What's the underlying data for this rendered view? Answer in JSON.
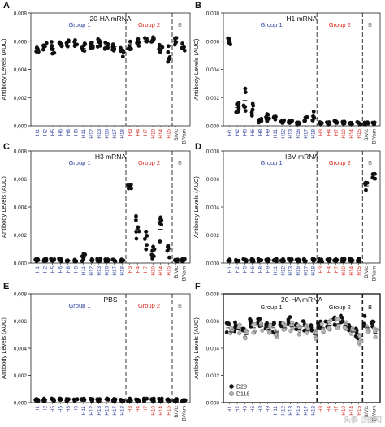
{
  "figure": {
    "ylabel": "Antibody Levels (AUC)",
    "watermark": "头条 @图知"
  },
  "chart_data": [
    {
      "type": "scatter",
      "panel_letter": "A",
      "title": "20-HA mRNA",
      "ylabel": "Antibody Levels (AUC)",
      "ylim": [
        0,
        0.008
      ],
      "yticks": [
        "0,000",
        "0,002",
        "0,004",
        "0,006",
        "0,008"
      ],
      "categories": [
        "H1",
        "H2",
        "H5",
        "H6",
        "H8",
        "H9",
        "H11",
        "H12",
        "H13",
        "H16",
        "H17",
        "H18",
        "H3",
        "H4",
        "H7",
        "H10",
        "H14",
        "H15",
        "B/Vic",
        "B/Yam"
      ],
      "category_colors": [
        "#2a3f9d",
        "#2a3f9d",
        "#2a3f9d",
        "#2a3f9d",
        "#2a3f9d",
        "#2a3f9d",
        "#2a3f9d",
        "#2a3f9d",
        "#2a3f9d",
        "#2a3f9d",
        "#2a3f9d",
        "#2a3f9d",
        "#d7281e",
        "#d7281e",
        "#d7281e",
        "#d7281e",
        "#d7281e",
        "#d7281e",
        "#333333",
        "#333333"
      ],
      "groups": [
        {
          "label": "Group 1",
          "color": "#2a3f9d",
          "start": 0,
          "end": 11
        },
        {
          "label": "Group 2",
          "color": "#d7281e",
          "start": 12,
          "end": 17
        },
        {
          "label": "B",
          "color": "#777777",
          "start": 18,
          "end": 19
        }
      ],
      "means": [
        0.0055,
        0.0056,
        0.0055,
        0.0059,
        0.0059,
        0.0058,
        0.0055,
        0.0058,
        0.0059,
        0.0057,
        0.0056,
        0.0054,
        0.0058,
        0.0059,
        0.006,
        0.006,
        0.0056,
        0.0051,
        0.006,
        0.0056
      ],
      "spread": [
        0.0003,
        0.0003,
        0.0005,
        0.0003,
        0.0003,
        0.0003,
        0.0004,
        0.0003,
        0.0003,
        0.0003,
        0.0003,
        0.0005,
        0.0004,
        0.0003,
        0.0003,
        0.0003,
        0.0004,
        0.0006,
        0.0003,
        0.0003
      ]
    },
    {
      "type": "scatter",
      "panel_letter": "B",
      "title": "H1 mRNA",
      "ylabel": "Antibody Levels (AUC)",
      "ylim": [
        0,
        0.008
      ],
      "yticks": [
        "0,000",
        "0,002",
        "0,004",
        "0,006",
        "0,008"
      ],
      "categories": [
        "H1",
        "H2",
        "H5",
        "H6",
        "H8",
        "H9",
        "H11",
        "H12",
        "H13",
        "H16",
        "H17",
        "H18",
        "H3",
        "H4",
        "H7",
        "H10",
        "H14",
        "H15",
        "B/Vic",
        "B/Yam"
      ],
      "category_colors": [
        "#2a3f9d",
        "#2a3f9d",
        "#2a3f9d",
        "#2a3f9d",
        "#2a3f9d",
        "#2a3f9d",
        "#2a3f9d",
        "#2a3f9d",
        "#2a3f9d",
        "#2a3f9d",
        "#2a3f9d",
        "#2a3f9d",
        "#d7281e",
        "#d7281e",
        "#d7281e",
        "#d7281e",
        "#d7281e",
        "#d7281e",
        "#333333",
        "#333333"
      ],
      "groups": [
        {
          "label": "Group 1",
          "color": "#2a3f9d",
          "start": 0,
          "end": 11
        },
        {
          "label": "Group 2",
          "color": "#d7281e",
          "start": 12,
          "end": 17
        },
        {
          "label": "B",
          "color": "#777777",
          "start": 18,
          "end": 19
        }
      ],
      "means": [
        0.006,
        0.0013,
        0.0018,
        0.0011,
        0.0004,
        0.0006,
        0.0006,
        0.0003,
        0.0003,
        0.0002,
        0.0006,
        0.0007,
        0.0002,
        0.0002,
        0.0003,
        0.0002,
        0.0002,
        0.0002,
        0.0002,
        0.0002
      ],
      "spread": [
        0.0003,
        0.0004,
        0.001,
        0.0005,
        0.0002,
        0.0003,
        0.0003,
        0.0001,
        0.0001,
        0.0001,
        0.0003,
        0.0004,
        0.0001,
        0.0001,
        0.0001,
        0.0001,
        0.0001,
        0.0001,
        0.0001,
        0.0001
      ]
    },
    {
      "type": "scatter",
      "panel_letter": "C",
      "title": "H3 mRNA",
      "ylabel": "Antibody Levels (AUC)",
      "ylim": [
        0,
        0.008
      ],
      "yticks": [
        "0,000",
        "0,002",
        "0,004",
        "0,006",
        "0,008"
      ],
      "categories": [
        "H1",
        "H2",
        "H5",
        "H6",
        "H8",
        "H9",
        "H11",
        "H12",
        "H13",
        "H16",
        "H17",
        "H18",
        "H3",
        "H4",
        "H7",
        "H10",
        "H14",
        "H15",
        "B/Vic",
        "B/Yam"
      ],
      "category_colors": [
        "#2a3f9d",
        "#2a3f9d",
        "#2a3f9d",
        "#2a3f9d",
        "#2a3f9d",
        "#2a3f9d",
        "#2a3f9d",
        "#2a3f9d",
        "#2a3f9d",
        "#2a3f9d",
        "#2a3f9d",
        "#2a3f9d",
        "#d7281e",
        "#d7281e",
        "#d7281e",
        "#d7281e",
        "#d7281e",
        "#d7281e",
        "#333333",
        "#333333"
      ],
      "groups": [
        {
          "label": "Group 1",
          "color": "#2a3f9d",
          "start": 0,
          "end": 11
        },
        {
          "label": "Group 2",
          "color": "#d7281e",
          "start": 12,
          "end": 17
        },
        {
          "label": "B",
          "color": "#777777",
          "start": 18,
          "end": 19
        }
      ],
      "means": [
        0.0002,
        0.0002,
        0.0002,
        0.0002,
        0.0002,
        0.0002,
        0.0004,
        0.0002,
        0.0002,
        0.0002,
        0.0002,
        0.0002,
        0.0055,
        0.0024,
        0.0017,
        0.0008,
        0.0024,
        0.0008,
        0.0002,
        0.0002
      ],
      "spread": [
        0.0001,
        0.0001,
        0.0001,
        0.0001,
        0.0001,
        0.0001,
        0.0003,
        0.0001,
        0.0001,
        0.0001,
        0.0001,
        0.0001,
        0.0003,
        0.001,
        0.0009,
        0.0005,
        0.0012,
        0.0005,
        0.0001,
        0.0001
      ]
    },
    {
      "type": "scatter",
      "panel_letter": "D",
      "title": "IBV mRNA",
      "ylabel": "Antibody Levels (AUC)",
      "ylim": [
        0,
        0.008
      ],
      "yticks": [
        "0,000",
        "0,002",
        "0,004",
        "0,006",
        "0,008"
      ],
      "categories": [
        "H1",
        "H2",
        "H5",
        "H6",
        "H8",
        "H9",
        "H11",
        "H12",
        "H13",
        "H16",
        "H17",
        "H18",
        "H3",
        "H4",
        "H7",
        "H10",
        "H14",
        "H15",
        "B/Vic",
        "B/Yam"
      ],
      "category_colors": [
        "#2a3f9d",
        "#2a3f9d",
        "#2a3f9d",
        "#2a3f9d",
        "#2a3f9d",
        "#2a3f9d",
        "#2a3f9d",
        "#2a3f9d",
        "#2a3f9d",
        "#2a3f9d",
        "#2a3f9d",
        "#2a3f9d",
        "#d7281e",
        "#d7281e",
        "#d7281e",
        "#d7281e",
        "#d7281e",
        "#d7281e",
        "#333333",
        "#333333"
      ],
      "groups": [
        {
          "label": "Group 1",
          "color": "#2a3f9d",
          "start": 0,
          "end": 11
        },
        {
          "label": "Group 2",
          "color": "#d7281e",
          "start": 12,
          "end": 17
        },
        {
          "label": "B",
          "color": "#777777",
          "start": 18,
          "end": 19
        }
      ],
      "means": [
        0.0002,
        0.0002,
        0.0002,
        0.0002,
        0.0002,
        0.0002,
        0.0002,
        0.0002,
        0.0002,
        0.0002,
        0.0002,
        0.0002,
        0.0002,
        0.0002,
        0.0002,
        0.0002,
        0.0002,
        0.0002,
        0.0055,
        0.0061
      ],
      "spread": [
        0.0001,
        0.0001,
        0.0001,
        0.0001,
        0.0001,
        0.0001,
        0.0001,
        0.0001,
        0.0001,
        0.0001,
        0.0001,
        0.0001,
        0.0001,
        0.0001,
        0.0001,
        0.0001,
        0.0001,
        0.0001,
        0.0004,
        0.0003
      ]
    },
    {
      "type": "scatter",
      "panel_letter": "E",
      "title": "PBS",
      "ylabel": "Antibody Levels (AUC)",
      "ylim": [
        0,
        0.008
      ],
      "yticks": [
        "0,000",
        "0,002",
        "0,004",
        "0,006",
        "0,008"
      ],
      "categories": [
        "H1",
        "H2",
        "H5",
        "H6",
        "H8",
        "H9",
        "H11",
        "H12",
        "H13",
        "H16",
        "H17",
        "H18",
        "H3",
        "H4",
        "H7",
        "H10",
        "H14",
        "H15",
        "B/Vic",
        "B/Yam"
      ],
      "category_colors": [
        "#2a3f9d",
        "#2a3f9d",
        "#2a3f9d",
        "#2a3f9d",
        "#2a3f9d",
        "#2a3f9d",
        "#2a3f9d",
        "#2a3f9d",
        "#2a3f9d",
        "#2a3f9d",
        "#2a3f9d",
        "#2a3f9d",
        "#d7281e",
        "#d7281e",
        "#d7281e",
        "#d7281e",
        "#d7281e",
        "#d7281e",
        "#333333",
        "#333333"
      ],
      "groups": [
        {
          "label": "Group 1",
          "color": "#2a3f9d",
          "start": 0,
          "end": 11
        },
        {
          "label": "Group 2",
          "color": "#d7281e",
          "start": 12,
          "end": 17
        },
        {
          "label": "B",
          "color": "#777777",
          "start": 18,
          "end": 19
        }
      ],
      "means": [
        0.0002,
        0.0002,
        0.0002,
        0.0002,
        0.0002,
        0.0002,
        0.0002,
        0.0002,
        0.0002,
        0.0002,
        0.0002,
        0.0002,
        0.0002,
        0.0002,
        0.0002,
        0.0002,
        0.0002,
        0.0002,
        0.0002,
        0.0002
      ],
      "spread": [
        0.0001,
        0.0001,
        0.0001,
        0.0001,
        0.0001,
        0.0001,
        0.0001,
        0.0001,
        0.0001,
        0.0001,
        0.0001,
        0.0001,
        0.0001,
        0.0001,
        0.0001,
        0.0001,
        0.0001,
        0.0001,
        0.0001,
        0.0001
      ]
    },
    {
      "type": "scatter",
      "panel_letter": "F",
      "title": "20-HA mRNA",
      "ylabel": "Antibody Levels (AUC)",
      "ylim": [
        0,
        0.008
      ],
      "yticks": [
        "0,000",
        "0,002",
        "0,004",
        "0,006",
        "0,008"
      ],
      "categories": [
        "H1",
        "H2",
        "H5",
        "H6",
        "H8",
        "H9",
        "H11",
        "H12",
        "H13",
        "H16",
        "H17",
        "H18",
        "H3",
        "H4",
        "H7",
        "H10",
        "H14",
        "H15",
        "B/Vic",
        "B/Yam"
      ],
      "category_colors": [
        "#2a3f9d",
        "#2a3f9d",
        "#2a3f9d",
        "#2a3f9d",
        "#2a3f9d",
        "#2a3f9d",
        "#2a3f9d",
        "#2a3f9d",
        "#2a3f9d",
        "#2a3f9d",
        "#2a3f9d",
        "#2a3f9d",
        "#d7281e",
        "#d7281e",
        "#d7281e",
        "#d7281e",
        "#d7281e",
        "#d7281e",
        "#333333",
        "#333333"
      ],
      "groups": [
        {
          "label": "Group 1",
          "color": "#111111",
          "start": 0,
          "end": 11
        },
        {
          "label": "Group 2",
          "color": "#111111",
          "start": 12,
          "end": 17
        },
        {
          "label": "B",
          "color": "#111111",
          "start": 18,
          "end": 19
        }
      ],
      "heavy_dividers": true,
      "series": [
        {
          "name": "D28",
          "color": "#111111",
          "means": [
            0.0055,
            0.0056,
            0.0055,
            0.0059,
            0.0059,
            0.0058,
            0.0055,
            0.0058,
            0.0059,
            0.0057,
            0.0056,
            0.0054,
            0.0058,
            0.0059,
            0.006,
            0.006,
            0.0056,
            0.0051,
            0.006,
            0.0056
          ]
        },
        {
          "name": "D118",
          "color": "#b5b5b5",
          "means": [
            0.0052,
            0.0054,
            0.005,
            0.0055,
            0.0056,
            0.0054,
            0.0052,
            0.0055,
            0.0056,
            0.0054,
            0.0053,
            0.005,
            0.0055,
            0.0057,
            0.0058,
            0.0057,
            0.0052,
            0.0047,
            0.0055,
            0.0051
          ]
        }
      ],
      "spread": 0.0004
    }
  ]
}
